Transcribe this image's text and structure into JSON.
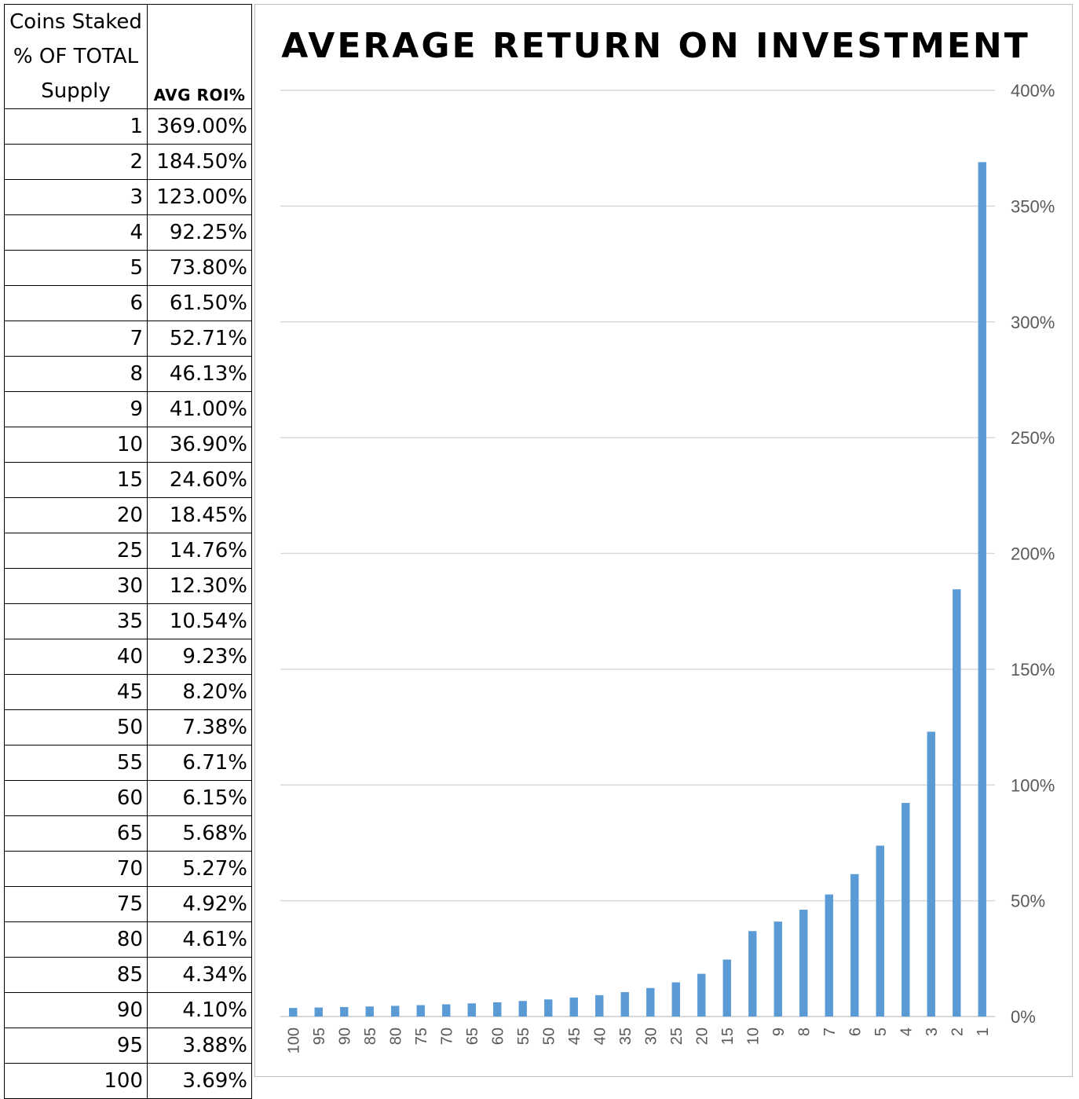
{
  "table": {
    "col1_header_lines": [
      "Coins Staked",
      "% OF TOTAL",
      "Supply"
    ],
    "col2_header": "AVG ROI%",
    "rows": [
      [
        "1",
        "369.00%"
      ],
      [
        "2",
        "184.50%"
      ],
      [
        "3",
        "123.00%"
      ],
      [
        "4",
        "92.25%"
      ],
      [
        "5",
        "73.80%"
      ],
      [
        "6",
        "61.50%"
      ],
      [
        "7",
        "52.71%"
      ],
      [
        "8",
        "46.13%"
      ],
      [
        "9",
        "41.00%"
      ],
      [
        "10",
        "36.90%"
      ],
      [
        "15",
        "24.60%"
      ],
      [
        "20",
        "18.45%"
      ],
      [
        "25",
        "14.76%"
      ],
      [
        "30",
        "12.30%"
      ],
      [
        "35",
        "10.54%"
      ],
      [
        "40",
        "9.23%"
      ],
      [
        "45",
        "8.20%"
      ],
      [
        "50",
        "7.38%"
      ],
      [
        "55",
        "6.71%"
      ],
      [
        "60",
        "6.15%"
      ],
      [
        "65",
        "5.68%"
      ],
      [
        "70",
        "5.27%"
      ],
      [
        "75",
        "4.92%"
      ],
      [
        "80",
        "4.61%"
      ],
      [
        "85",
        "4.34%"
      ],
      [
        "90",
        "4.10%"
      ],
      [
        "95",
        "3.88%"
      ],
      [
        "100",
        "3.69%"
      ]
    ]
  },
  "chart_data": {
    "type": "bar",
    "title": "AVERAGE RETURN ON INVESTMENT",
    "xlabel": "",
    "ylabel": "",
    "categories": [
      "100",
      "95",
      "90",
      "85",
      "80",
      "75",
      "70",
      "65",
      "60",
      "55",
      "50",
      "45",
      "40",
      "35",
      "30",
      "25",
      "20",
      "15",
      "10",
      "9",
      "8",
      "7",
      "6",
      "5",
      "4",
      "3",
      "2",
      "1"
    ],
    "values": [
      3.69,
      3.88,
      4.1,
      4.34,
      4.61,
      4.92,
      5.27,
      5.68,
      6.15,
      6.71,
      7.38,
      8.2,
      9.23,
      10.54,
      12.3,
      14.76,
      18.45,
      24.6,
      36.9,
      41.0,
      46.13,
      52.71,
      61.5,
      73.8,
      92.25,
      123.0,
      184.5,
      369.0
    ],
    "ylim": [
      0,
      400
    ],
    "yticks": [
      "0%",
      "50%",
      "100%",
      "150%",
      "200%",
      "250%",
      "300%",
      "350%",
      "400%"
    ],
    "y_axis_side": "right",
    "x_tick_orientation": "vertical",
    "grid": true,
    "legend": "none",
    "bar_color": "#5b9bd5",
    "grid_color": "#d9d9d9",
    "axis_color": "#d9d9d9"
  }
}
